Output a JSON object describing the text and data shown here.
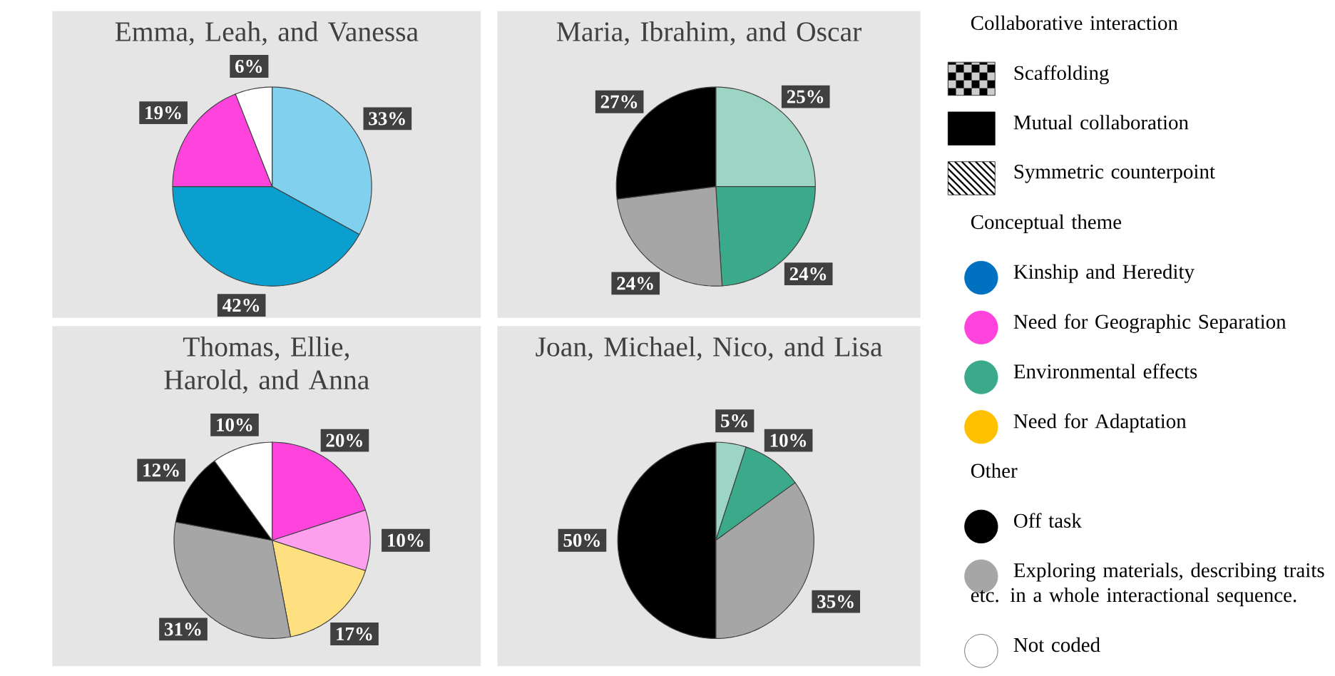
{
  "chart_data": [
    {
      "type": "pie",
      "title": "Emma, Leah, and Vanessa",
      "categories": [
        null,
        null,
        null,
        null
      ],
      "values": [
        33,
        42,
        19,
        6
      ],
      "colors": [
        "#80d0ee",
        "#0b9fcf",
        "#ff44dd",
        "#ffffff"
      ],
      "value_labels": [
        "33%",
        "42%",
        "19%",
        "6%"
      ]
    },
    {
      "type": "pie",
      "title": "Maria, Ibrahim, and Oscar",
      "categories": [
        null,
        null,
        null,
        null
      ],
      "values": [
        25,
        24,
        24,
        27
      ],
      "colors": [
        "#9dd5c5",
        "#3aaa8a",
        "#a6a6a6",
        "#000000"
      ],
      "value_labels": [
        "25%",
        "24%",
        "24%",
        "27%"
      ]
    },
    {
      "type": "pie",
      "title": "Thomas, Ellie, Harold, and Anna",
      "categories": [
        null,
        null,
        null,
        null,
        null,
        null
      ],
      "values": [
        20,
        10,
        17,
        31,
        12,
        10
      ],
      "colors": [
        "#ff44dd",
        "#ffa0ee",
        "#ffe080",
        "#a6a6a6",
        "#000000",
        "#ffffff"
      ],
      "value_labels": [
        "20%",
        "10%",
        "17%",
        "31%",
        "12%",
        "10%"
      ]
    },
    {
      "type": "pie",
      "title": "Joan, Michael, Nico, and Lisa",
      "categories": [
        null,
        null,
        null,
        null
      ],
      "values": [
        5,
        10,
        35,
        50
      ],
      "colors": [
        "#9dd5c5",
        "#3aaa8a",
        "#a6a6a6",
        "#000000"
      ],
      "value_labels": [
        "5%",
        "10%",
        "35%",
        "50%"
      ]
    },
    {
      "type": "other",
      "annotations": [
        "Collaborative interaction",
        "Scaffolding",
        "Mutual collaboration",
        "Symmetric counterpoint",
        "Conceptual theme",
        "Kinship and Heredity",
        "Need for Geographic Separation",
        "Environmental effects",
        "Need for Adaptation",
        "Other",
        "Off task",
        "Exploring materials, describing traits etc. in a whole interactional sequence.",
        "Not coded"
      ],
      "colors": [
        null,
        "#000000",
        "#000000",
        "#000000",
        null,
        "#0070c0",
        "#ff44dd",
        "#3aaa8a",
        "#ffc000",
        null,
        "#000000",
        "#a6a6a6",
        "#ffffff"
      ]
    }
  ]
}
